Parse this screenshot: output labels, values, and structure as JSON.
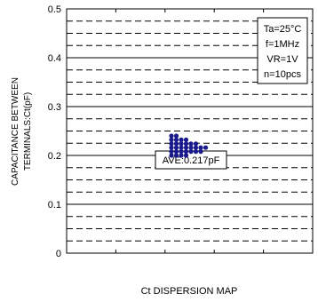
{
  "chart_data": {
    "type": "scatter",
    "xlabel": "Ct DISPERSION MAP",
    "ylabel_lines": [
      "CAPACITANCE BETWEEN",
      "TERMINALS:Ct(pF)"
    ],
    "ylim": [
      0,
      0.5
    ],
    "yticks": [
      "0",
      "0.1",
      "0.2",
      "0.3",
      "0.4",
      "0.5"
    ],
    "grid": true,
    "conditions": [
      "Ta=25°C",
      "f=1MHz",
      "VR=1V",
      "n=10pcs"
    ],
    "annotation": "AVE:0.217pF",
    "point_color": "#1a1a8c",
    "points": [
      {
        "col": 0,
        "y": 0.24
      },
      {
        "col": 0,
        "y": 0.232
      },
      {
        "col": 0,
        "y": 0.224
      },
      {
        "col": 0,
        "y": 0.216
      },
      {
        "col": 0,
        "y": 0.208
      },
      {
        "col": 0,
        "y": 0.2
      },
      {
        "col": 1,
        "y": 0.24
      },
      {
        "col": 1,
        "y": 0.232
      },
      {
        "col": 1,
        "y": 0.224
      },
      {
        "col": 1,
        "y": 0.216
      },
      {
        "col": 1,
        "y": 0.208
      },
      {
        "col": 1,
        "y": 0.2
      },
      {
        "col": 2,
        "y": 0.232
      },
      {
        "col": 2,
        "y": 0.224
      },
      {
        "col": 2,
        "y": 0.216
      },
      {
        "col": 2,
        "y": 0.208
      },
      {
        "col": 2,
        "y": 0.2
      },
      {
        "col": 3,
        "y": 0.232
      },
      {
        "col": 3,
        "y": 0.224
      },
      {
        "col": 3,
        "y": 0.216
      },
      {
        "col": 3,
        "y": 0.208
      },
      {
        "col": 3,
        "y": 0.2
      },
      {
        "col": 4,
        "y": 0.224
      },
      {
        "col": 4,
        "y": 0.216
      },
      {
        "col": 4,
        "y": 0.208
      },
      {
        "col": 5,
        "y": 0.224
      },
      {
        "col": 5,
        "y": 0.216
      },
      {
        "col": 5,
        "y": 0.208
      },
      {
        "col": 6,
        "y": 0.216
      },
      {
        "col": 6,
        "y": 0.208
      },
      {
        "col": 7,
        "y": 0.216
      }
    ]
  }
}
